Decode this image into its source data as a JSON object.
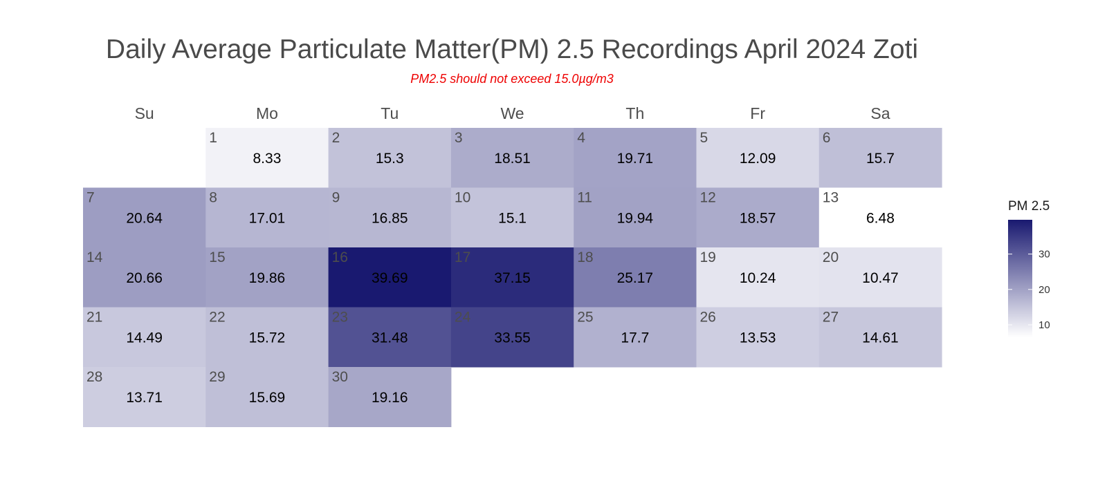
{
  "chart_data": {
    "type": "heatmap",
    "title": "Daily Average Particulate Matter(PM) 2.5 Recordings April 2024 Zoti",
    "subtitle": "PM2.5 should not exceed 15.0µg/m3",
    "weekdays": [
      "Su",
      "Mo",
      "Tu",
      "We",
      "Th",
      "Fr",
      "Sa"
    ],
    "first_weekday_index": 1,
    "days": [
      {
        "day": 1,
        "value": 8.33
      },
      {
        "day": 2,
        "value": 15.3
      },
      {
        "day": 3,
        "value": 18.51
      },
      {
        "day": 4,
        "value": 19.71
      },
      {
        "day": 5,
        "value": 12.09
      },
      {
        "day": 6,
        "value": 15.7
      },
      {
        "day": 7,
        "value": 20.64
      },
      {
        "day": 8,
        "value": 17.01
      },
      {
        "day": 9,
        "value": 16.85
      },
      {
        "day": 10,
        "value": 15.1
      },
      {
        "day": 11,
        "value": 19.94
      },
      {
        "day": 12,
        "value": 18.57
      },
      {
        "day": 13,
        "value": 6.48
      },
      {
        "day": 14,
        "value": 20.66
      },
      {
        "day": 15,
        "value": 19.86
      },
      {
        "day": 16,
        "value": 39.69
      },
      {
        "day": 17,
        "value": 37.15
      },
      {
        "day": 18,
        "value": 25.17
      },
      {
        "day": 19,
        "value": 10.24
      },
      {
        "day": 20,
        "value": 10.47
      },
      {
        "day": 21,
        "value": 14.49
      },
      {
        "day": 22,
        "value": 15.72
      },
      {
        "day": 23,
        "value": 31.48
      },
      {
        "day": 24,
        "value": 33.55
      },
      {
        "day": 25,
        "value": 17.7
      },
      {
        "day": 26,
        "value": 13.53
      },
      {
        "day": 27,
        "value": 14.61
      },
      {
        "day": 28,
        "value": 13.71
      },
      {
        "day": 29,
        "value": 15.69
      },
      {
        "day": 30,
        "value": 19.16
      }
    ],
    "color_scale": {
      "low_color": "#ffffff",
      "high_color": "#191970",
      "min": 6.48,
      "max": 39.69
    },
    "legend": {
      "title": "PM 2.5",
      "ticks": [
        10,
        20,
        30
      ],
      "position": "right"
    }
  }
}
